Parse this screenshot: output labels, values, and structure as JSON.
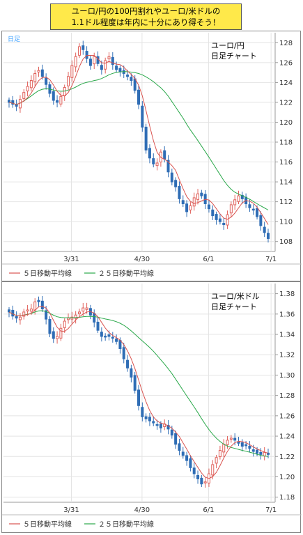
{
  "banner": {
    "line1": "ユーロ/円の100円割れやユーロ/米ドルの",
    "line2": "1.1ドル程度は年内に十分にあり得そう！"
  },
  "chart_data": [
    {
      "type": "candlestick",
      "tag": "日足",
      "title_line1": "ユーロ/円",
      "title_line2": "日足チャート",
      "ylim": [
        107,
        129
      ],
      "yticks": [
        108,
        110,
        112,
        114,
        116,
        118,
        120,
        122,
        124,
        126,
        128
      ],
      "x_ticks": [
        "3/31",
        "4/30",
        "6/1",
        "7/1"
      ],
      "legend": [
        "５日移動平均線",
        "２５日移動平均線"
      ],
      "ma5_color": "#d9534f",
      "ma25_color": "#2aa84a",
      "close_series": [
        122.0,
        121.8,
        121.6,
        122.3,
        123.0,
        123.6,
        124.2,
        124.9,
        125.2,
        124.6,
        123.8,
        122.9,
        122.2,
        122.0,
        122.6,
        123.5,
        124.6,
        125.7,
        126.6,
        127.6,
        127.3,
        126.4,
        125.7,
        126.6,
        125.9,
        125.3,
        126.2,
        126.6,
        125.8,
        125.3,
        125.1,
        124.9,
        124.6,
        124.2,
        123.2,
        121.8,
        119.5,
        117.2,
        116.4,
        115.8,
        115.9,
        117.0,
        116.3,
        115.0,
        114.0,
        113.5,
        112.3,
        111.8,
        111.0,
        111.6,
        112.4,
        112.8,
        112.6,
        111.8,
        111.3,
        110.6,
        110.2,
        110.0,
        109.7,
        110.7,
        111.7,
        112.2,
        112.6,
        112.3,
        111.8,
        111.4,
        111.2,
        110.5,
        109.6,
        108.9,
        108.3
      ]
    },
    {
      "type": "candlestick",
      "title_line1": "ユーロ/米ドル",
      "title_line2": "日足チャート",
      "ylim": [
        1.175,
        1.39
      ],
      "yticks": [
        1.18,
        1.2,
        1.22,
        1.24,
        1.26,
        1.28,
        1.3,
        1.32,
        1.34,
        1.36,
        1.38
      ],
      "x_ticks": [
        "3/31",
        "4/30",
        "6/1",
        "7/1"
      ],
      "legend": [
        "５日移動平均線",
        "２５日移動平均線"
      ],
      "ma5_color": "#d9534f",
      "ma25_color": "#2aa84a",
      "close_series": [
        1.362,
        1.358,
        1.356,
        1.357,
        1.362,
        1.364,
        1.365,
        1.372,
        1.372,
        1.365,
        1.355,
        1.341,
        1.336,
        1.338,
        1.346,
        1.353,
        1.356,
        1.357,
        1.359,
        1.362,
        1.366,
        1.366,
        1.359,
        1.352,
        1.344,
        1.338,
        1.338,
        1.338,
        1.337,
        1.333,
        1.326,
        1.316,
        1.307,
        1.298,
        1.285,
        1.27,
        1.259,
        1.257,
        1.255,
        1.253,
        1.251,
        1.248,
        1.252,
        1.247,
        1.241,
        1.232,
        1.226,
        1.221,
        1.216,
        1.209,
        1.203,
        1.198,
        1.193,
        1.195,
        1.203,
        1.212,
        1.219,
        1.226,
        1.232,
        1.236,
        1.238,
        1.236,
        1.233,
        1.23,
        1.231,
        1.228,
        1.225,
        1.223,
        1.222,
        1.224,
        1.222
      ]
    }
  ]
}
